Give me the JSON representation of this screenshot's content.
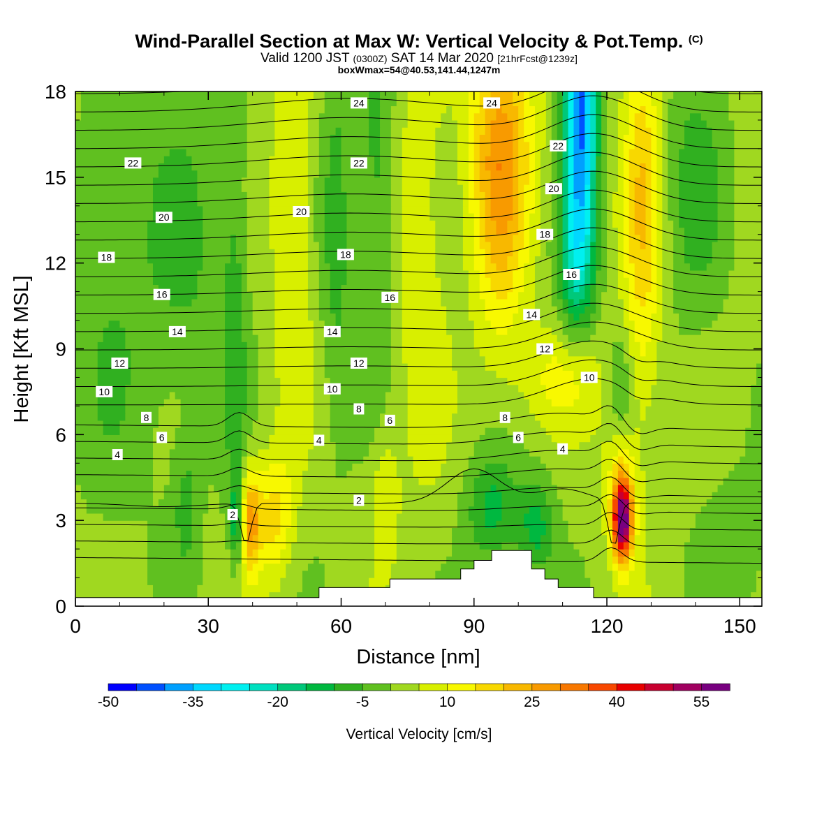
{
  "title": {
    "main": "Wind-Parallel Section at Max W: Vertical Velocity & Pot.Temp.",
    "mark": "(C)",
    "valid_a": "Valid 1200 JST",
    "valid_b": "(0300Z)",
    "valid_c": "SAT 14 Mar 2020",
    "valid_d": "[21hrFcst@1239z]",
    "box": "boxWmax=54@40.53,141.44,1247m"
  },
  "chart_data": {
    "type": "heatmap",
    "xlabel": "Distance [nm]",
    "ylabel": "Height [Kft MSL]",
    "xlim": [
      0,
      155
    ],
    "ylim": [
      0,
      18
    ],
    "x_ticks": [
      0,
      30,
      60,
      90,
      120,
      150
    ],
    "y_ticks": [
      0,
      3,
      6,
      9,
      12,
      15,
      18
    ],
    "grid": false,
    "colorbar": {
      "label": "Vertical Velocity [cm/s]",
      "tick_labels": [
        -50,
        -35,
        -20,
        -5,
        10,
        25,
        40,
        55
      ],
      "levels": [
        -50,
        -45,
        -40,
        -35,
        -30,
        -25,
        -20,
        -15,
        -10,
        -5,
        0,
        5,
        10,
        15,
        20,
        25,
        30,
        35,
        40,
        45,
        50,
        55,
        60
      ],
      "colors": [
        "#0000ff",
        "#0050ff",
        "#00a0ff",
        "#00d8ff",
        "#00f0f0",
        "#00e0c0",
        "#00c87a",
        "#00b840",
        "#30b020",
        "#60c020",
        "#a0d820",
        "#d8ef00",
        "#f8f800",
        "#f8d800",
        "#f8b800",
        "#f89a00",
        "#f87800",
        "#f84800",
        "#e80000",
        "#c80030",
        "#a00060",
        "#780080"
      ]
    },
    "velocity_cores": [
      {
        "x": 123.5,
        "z": 3.0,
        "w": 55
      },
      {
        "x": 39.5,
        "z": 3.0,
        "w": 25
      },
      {
        "x": 45,
        "z": 3.2,
        "w": 18
      },
      {
        "x": 36.5,
        "z": 3.0,
        "w": -15
      },
      {
        "x": 113.5,
        "z": 17.5,
        "w": -42
      },
      {
        "x": 114,
        "z": 15.0,
        "w": -30
      },
      {
        "x": 94,
        "z": 3.3,
        "w": -12
      },
      {
        "x": 104,
        "z": 2.8,
        "w": -12
      },
      {
        "x": 98,
        "z": 16.5,
        "w": 22
      },
      {
        "x": 93,
        "z": 17.0,
        "w": 24
      },
      {
        "x": 128,
        "z": 14.0,
        "w": 14
      },
      {
        "x": 70,
        "z": 4.0,
        "w": 10
      },
      {
        "x": 51,
        "z": 15.5,
        "w": 8
      }
    ],
    "theta_contour_labels": [
      {
        "x": 64,
        "z": 17.6,
        "text": "24"
      },
      {
        "x": 94,
        "z": 17.6,
        "text": "24"
      },
      {
        "x": 13,
        "z": 15.5,
        "text": "22"
      },
      {
        "x": 64,
        "z": 15.5,
        "text": "22"
      },
      {
        "x": 109,
        "z": 16.1,
        "text": "22"
      },
      {
        "x": 20,
        "z": 13.6,
        "text": "20"
      },
      {
        "x": 51,
        "z": 13.8,
        "text": "20"
      },
      {
        "x": 108,
        "z": 14.6,
        "text": "20"
      },
      {
        "x": 7,
        "z": 12.2,
        "text": "18"
      },
      {
        "x": 61,
        "z": 12.3,
        "text": "18"
      },
      {
        "x": 106,
        "z": 13.0,
        "text": "18"
      },
      {
        "x": 19.5,
        "z": 10.9,
        "text": "16"
      },
      {
        "x": 71,
        "z": 10.8,
        "text": "16"
      },
      {
        "x": 112,
        "z": 11.6,
        "text": "16"
      },
      {
        "x": 23,
        "z": 9.6,
        "text": "14"
      },
      {
        "x": 58,
        "z": 9.6,
        "text": "14"
      },
      {
        "x": 103,
        "z": 10.2,
        "text": "14"
      },
      {
        "x": 10,
        "z": 8.5,
        "text": "12"
      },
      {
        "x": 64,
        "z": 8.5,
        "text": "12"
      },
      {
        "x": 106,
        "z": 9.0,
        "text": "12"
      },
      {
        "x": 6.5,
        "z": 7.5,
        "text": "10"
      },
      {
        "x": 58,
        "z": 7.6,
        "text": "10"
      },
      {
        "x": 116,
        "z": 8.0,
        "text": "10"
      },
      {
        "x": 16,
        "z": 6.6,
        "text": "8"
      },
      {
        "x": 64,
        "z": 6.9,
        "text": "8"
      },
      {
        "x": 97,
        "z": 6.6,
        "text": "8"
      },
      {
        "x": 19.5,
        "z": 5.9,
        "text": "6"
      },
      {
        "x": 71,
        "z": 6.5,
        "text": "6"
      },
      {
        "x": 100,
        "z": 5.9,
        "text": "6"
      },
      {
        "x": 9.5,
        "z": 5.3,
        "text": "4"
      },
      {
        "x": 55,
        "z": 5.8,
        "text": "4"
      },
      {
        "x": 110,
        "z": 5.5,
        "text": "4"
      },
      {
        "x": 64,
        "z": 3.7,
        "text": "2"
      },
      {
        "x": 35.5,
        "z": 3.2,
        "text": "2"
      }
    ],
    "terrain": [
      [
        0,
        0.3
      ],
      [
        55,
        0.3
      ],
      [
        55,
        0.65
      ],
      [
        71,
        0.65
      ],
      [
        71,
        0.95
      ],
      [
        87,
        0.95
      ],
      [
        87,
        1.3
      ],
      [
        90,
        1.3
      ],
      [
        90,
        1.6
      ],
      [
        94,
        1.6
      ],
      [
        94,
        1.95
      ],
      [
        103,
        1.95
      ],
      [
        103,
        1.3
      ],
      [
        106,
        1.3
      ],
      [
        106,
        0.95
      ],
      [
        109,
        0.95
      ],
      [
        109,
        0.65
      ],
      [
        117,
        0.65
      ],
      [
        117,
        0.3
      ],
      [
        155,
        0.3
      ]
    ]
  }
}
